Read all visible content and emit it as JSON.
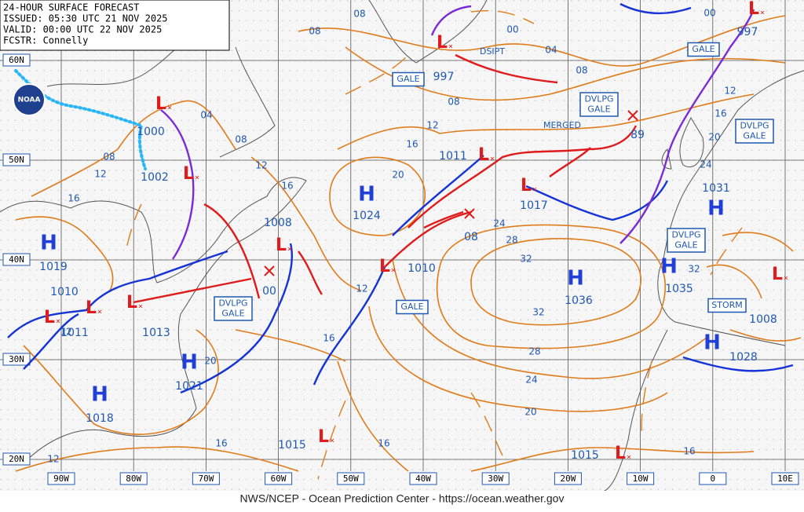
{
  "header": {
    "title": "24-HOUR SURFACE FORECAST",
    "issued": "ISSUED: 05:30 UTC 21 NOV 2025",
    "valid": "VALID:  00:00 UTC 22 NOV 2025",
    "forecaster": "FCSTR:  Connelly"
  },
  "logo": "NOAA",
  "footer": "NWS/NCEP - Ocean Prediction Center - https://ocean.weather.gov",
  "grid": {
    "lat_labels": [
      "60N",
      "50N",
      "40N",
      "30N",
      "20N"
    ],
    "lon_labels": [
      "90W",
      "80W",
      "70W",
      "60W",
      "50W",
      "40W",
      "30W",
      "20W",
      "10W",
      "0",
      "10E"
    ]
  },
  "highs": [
    {
      "symbol": "H",
      "value": "1019"
    },
    {
      "symbol": "H",
      "value": "1024"
    },
    {
      "symbol": "H",
      "value": "1036"
    },
    {
      "symbol": "H",
      "value": "1031"
    },
    {
      "symbol": "H",
      "value": "1035"
    },
    {
      "symbol": "H",
      "value": "1028"
    },
    {
      "symbol": "H",
      "value": "1018"
    },
    {
      "symbol": "H",
      "value": "1021"
    }
  ],
  "lows": [
    {
      "symbol": "L",
      "value": "1000"
    },
    {
      "symbol": "L",
      "value": "1002"
    },
    {
      "symbol": "L",
      "value": "1011"
    },
    {
      "symbol": "L",
      "value": "1010"
    },
    {
      "symbol": "L",
      "value": "1013"
    },
    {
      "symbol": "L",
      "value": "1008"
    },
    {
      "symbol": "L",
      "value": "1010"
    },
    {
      "symbol": "L",
      "value": "997"
    },
    {
      "symbol": "L",
      "value": "1011"
    },
    {
      "symbol": "L",
      "value": "1017"
    },
    {
      "symbol": "L",
      "value": "997"
    },
    {
      "symbol": "L",
      "value": "1008"
    },
    {
      "symbol": "L",
      "value": "1015"
    },
    {
      "symbol": "L",
      "value": "1015"
    }
  ],
  "forming_lows": [
    "00",
    "08",
    "89"
  ],
  "isobar_labels": [
    "08",
    "00",
    "04",
    "08",
    "08",
    "00",
    "08",
    "12",
    "16",
    "20",
    "12",
    "16",
    "20",
    "24",
    "04",
    "08",
    "08",
    "12",
    "16",
    "12",
    "16",
    "24",
    "28",
    "32",
    "32",
    "32",
    "12",
    "16",
    "20",
    "12",
    "28",
    "24",
    "20",
    "16",
    "16",
    "16",
    "12"
  ],
  "boxes": [
    {
      "lines": [
        "GALE"
      ]
    },
    {
      "lines": [
        "DSIPT"
      ]
    },
    {
      "lines": [
        "DVLPG",
        "GALE"
      ]
    },
    {
      "lines": [
        "MERGED"
      ]
    },
    {
      "lines": [
        "DVLPG",
        "GALE"
      ]
    },
    {
      "lines": [
        "GALE"
      ]
    },
    {
      "lines": [
        "DVLPG",
        "GALE"
      ]
    },
    {
      "lines": [
        "STORM"
      ]
    },
    {
      "lines": [
        "GALE"
      ]
    },
    {
      "lines": [
        "DVLPG",
        "GALE"
      ]
    }
  ]
}
